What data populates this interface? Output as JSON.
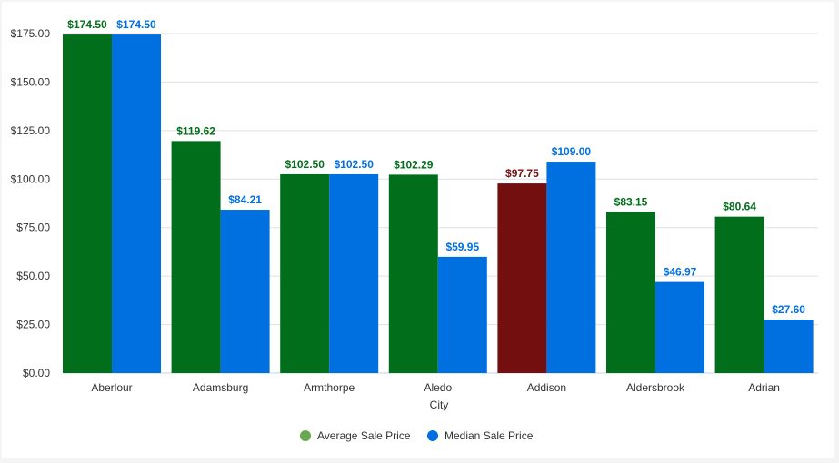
{
  "chart_data": {
    "type": "bar",
    "xlabel": "City",
    "ylabel": "",
    "categories": [
      "Aberlour",
      "Adamsburg",
      "Armthorpe",
      "Aledo",
      "Addison",
      "Aldersbrook",
      "Adrian"
    ],
    "series": [
      {
        "name": "Average Sale Price",
        "values": [
          174.5,
          119.62,
          102.5,
          102.29,
          97.75,
          83.15,
          80.64
        ],
        "color": "#016e1b",
        "legend_color": "#6aa84f",
        "labels": [
          "$174.50",
          "$119.62",
          "$102.50",
          "$102.29",
          "$97.75",
          "$83.15",
          "$80.64"
        ]
      },
      {
        "name": "Median Sale Price",
        "values": [
          174.5,
          84.21,
          102.5,
          59.95,
          109.0,
          46.97,
          27.6
        ],
        "color": "#0070e0",
        "legend_color": "#0070e0",
        "labels": [
          "$174.50",
          "$84.21",
          "$102.50",
          "$59.95",
          "$109.00",
          "$46.97",
          "$27.60"
        ]
      }
    ],
    "highlight": {
      "category": "Addison",
      "series": "Average Sale Price",
      "color": "#740f0f"
    },
    "ylim": [
      0,
      175
    ],
    "yticks": [
      0,
      25,
      50,
      75,
      100,
      125,
      150,
      175
    ],
    "ytick_labels": [
      "$0.00",
      "$25.00",
      "$50.00",
      "$75.00",
      "$100.00",
      "$125.00",
      "$150.00",
      "$175.00"
    ],
    "grid": true,
    "legend_position": "bottom"
  }
}
